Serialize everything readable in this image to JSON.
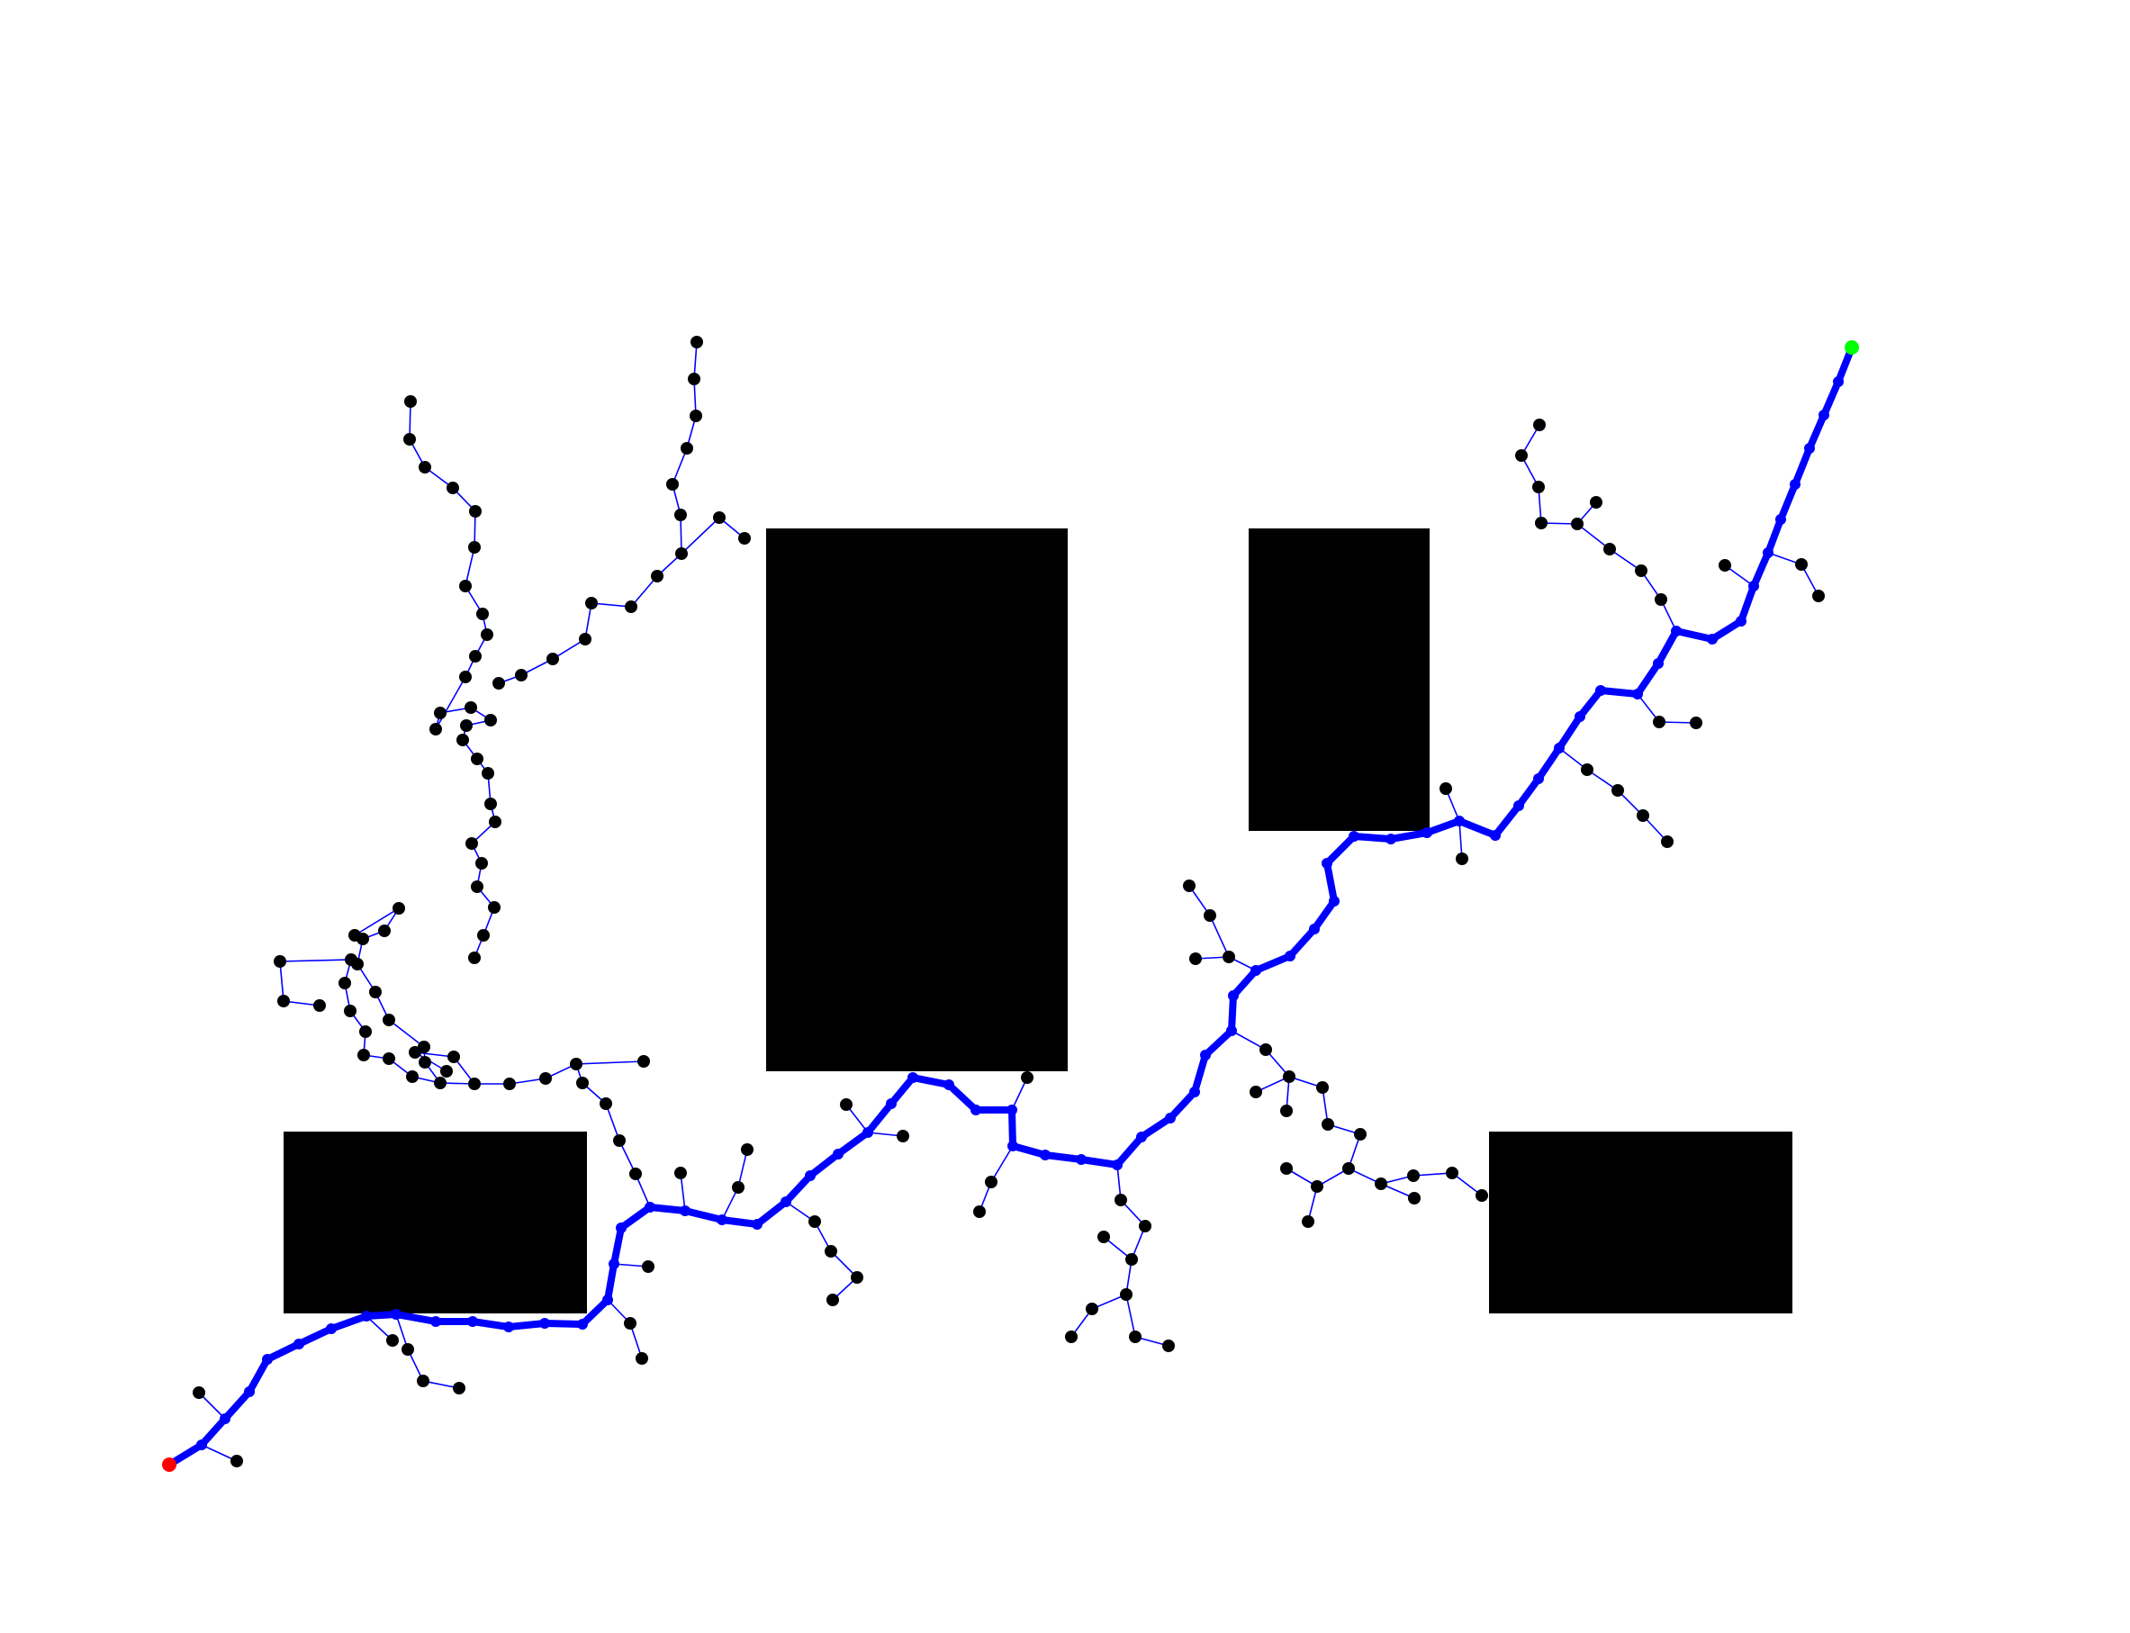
{
  "diagram": {
    "type": "rrt-path-planning",
    "colors": {
      "background": "#ffffff",
      "obstacle": "#000000",
      "tree_edge": "#0000ff",
      "path": "#0000ff",
      "node": "#000000",
      "start": "#ff0000",
      "goal": "#00ff00"
    }
  }
}
